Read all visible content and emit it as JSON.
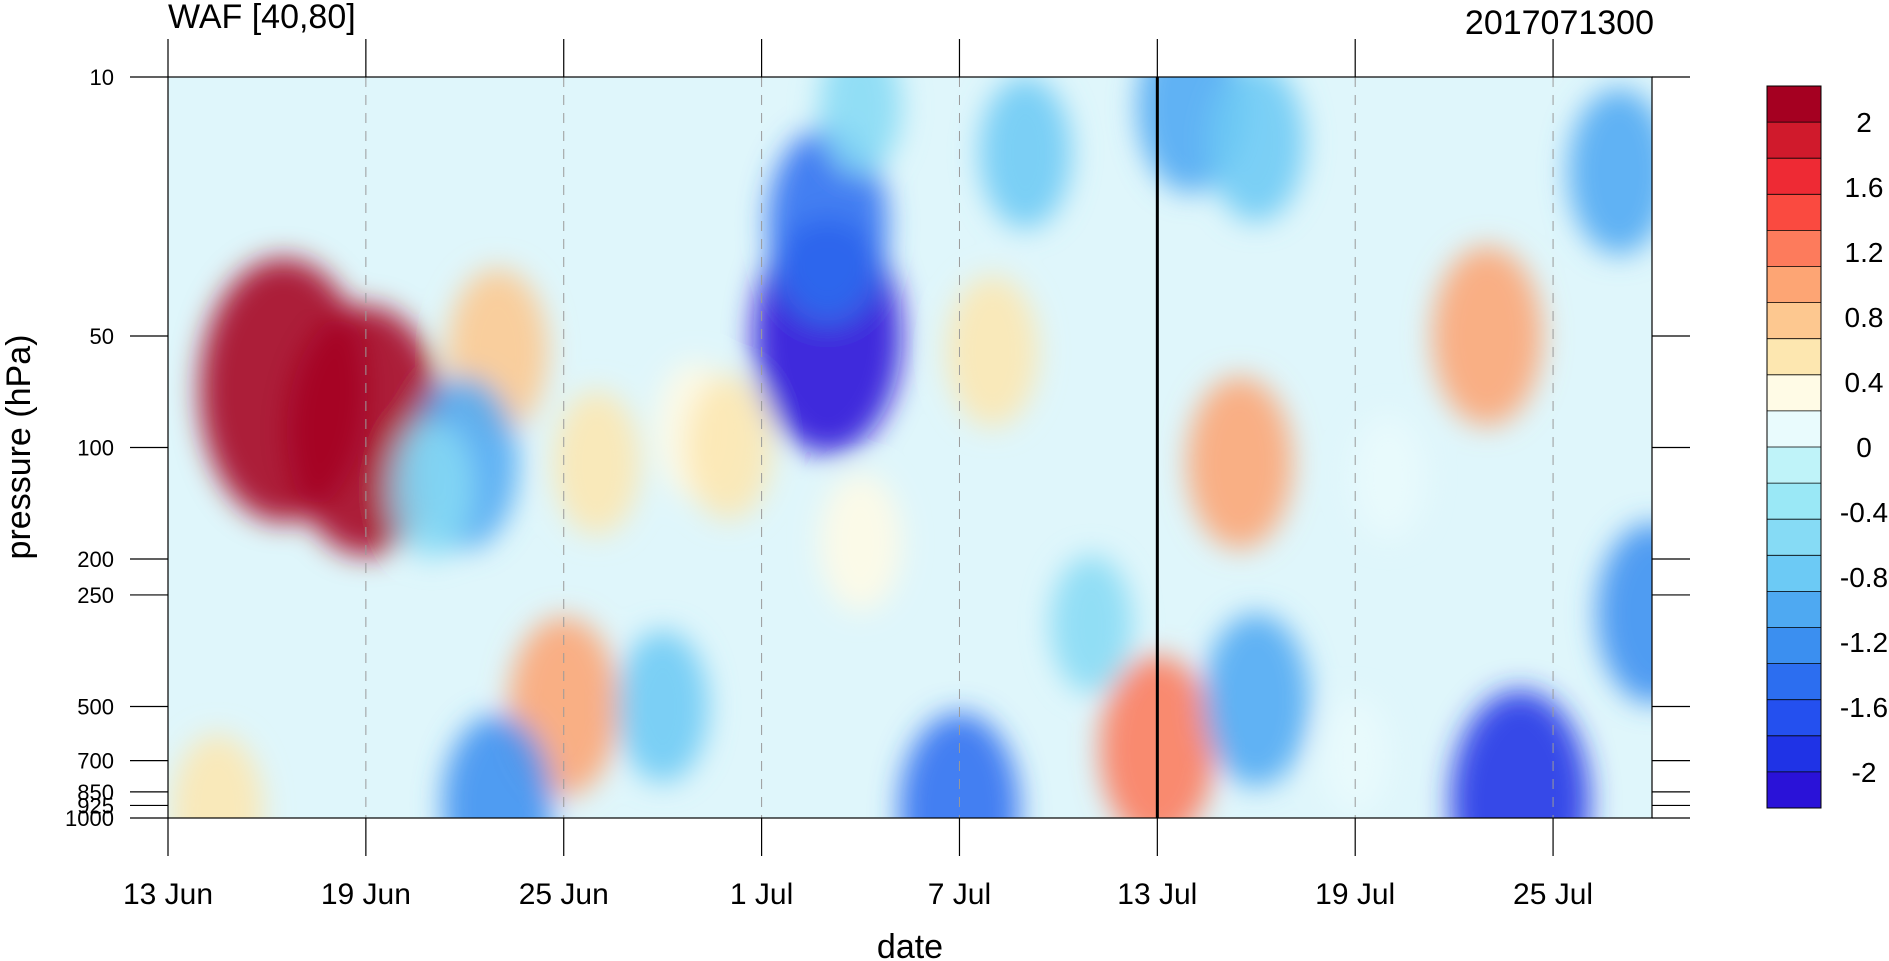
{
  "chart_data": {
    "type": "heatmap",
    "title": "WAF [40,80]",
    "subtitle": "2017071300",
    "xlabel": "date",
    "ylabel": "pressure (hPa)",
    "x_ticks": [
      "13 Jun",
      "19 Jun",
      "25 Jun",
      "1 Jul",
      "7 Jul",
      "13 Jul",
      "19 Jul",
      "25 Jul"
    ],
    "y_ticks": [
      "10",
      "50",
      "100",
      "200",
      "250",
      "500",
      "700",
      "850",
      "925",
      "1000"
    ],
    "y_tick_values": [
      10,
      50,
      100,
      200,
      250,
      500,
      700,
      850,
      925,
      1000
    ],
    "y_scale": "log",
    "ylim": [
      1000,
      10
    ],
    "x_range": [
      "13 Jun",
      "28 Jul"
    ],
    "marker_date": "13 Jul",
    "colorbar": {
      "tick_labels": [
        "2",
        "1.6",
        "1.2",
        "0.8",
        "0.4",
        "0",
        "-0.4",
        "-0.8",
        "-1.2",
        "-1.6",
        "-2"
      ],
      "tick_values": [
        2,
        1.6,
        1.2,
        0.8,
        0.4,
        0,
        -0.4,
        -0.8,
        -1.2,
        -1.6,
        -2
      ],
      "colors": [
        "#a50021",
        "#d01a2c",
        "#ee2a34",
        "#fa4a40",
        "#fd7b5c",
        "#fda574",
        "#fdc890",
        "#fde7b0",
        "#fffbe6",
        "#e9fbfd",
        "#bff3f9",
        "#9ae8f6",
        "#86dbf5",
        "#6ccaf5",
        "#4ea9f2",
        "#3b8ff0",
        "#2c6ef0",
        "#2450ef",
        "#1f33e6",
        "#2a12d8"
      ]
    },
    "features": [
      {
        "date": "16.5 Jun",
        "level": 70,
        "value": 2.2
      },
      {
        "date": "19 Jun",
        "level": 90,
        "value": 2.0
      },
      {
        "date": "26 Jun",
        "level": 110,
        "value": 0.5
      },
      {
        "date": "25 Jun",
        "level": 500,
        "value": 1.0
      },
      {
        "date": "23 Jun",
        "level": 55,
        "value": 0.8
      },
      {
        "date": "22 Jun",
        "level": 110,
        "value": -0.9
      },
      {
        "date": "21 Jun",
        "level": 130,
        "value": -0.4
      },
      {
        "date": "3 Jul",
        "level": 50,
        "value": -1.8
      },
      {
        "date": "3 Jul",
        "level": 25,
        "value": -1.2
      },
      {
        "date": "4 Jul",
        "level": 12,
        "value": -0.4
      },
      {
        "date": "29 Jun",
        "level": 90,
        "value": 0.4
      },
      {
        "date": "30 Jun",
        "level": 100,
        "value": 0.5
      },
      {
        "date": "4 Jul",
        "level": 180,
        "value": 0.4
      },
      {
        "date": "8 Jul",
        "level": 55,
        "value": 0.6
      },
      {
        "date": "9 Jul",
        "level": 16,
        "value": -0.6
      },
      {
        "date": "14 Jul",
        "level": 12,
        "value": -0.9
      },
      {
        "date": "16 Jul",
        "level": 15,
        "value": -0.7
      },
      {
        "date": "15.5 Jul",
        "level": 110,
        "value": 0.9
      },
      {
        "date": "13 Jul",
        "level": 650,
        "value": 1.1
      },
      {
        "date": "16 Jul",
        "level": 480,
        "value": -0.9
      },
      {
        "date": "23 Jul",
        "level": 50,
        "value": 1.0
      },
      {
        "date": "20 Jul",
        "level": 120,
        "value": 0.2
      },
      {
        "date": "24 Jul",
        "level": 900,
        "value": -1.6
      },
      {
        "date": "28 Jul",
        "level": 280,
        "value": -1.0
      },
      {
        "date": "27 Jul",
        "level": 18,
        "value": -0.8
      },
      {
        "date": "23 Jun",
        "level": 920,
        "value": -1.0
      },
      {
        "date": "14.5 Jun",
        "level": 950,
        "value": 0.6
      },
      {
        "date": "7 Jul",
        "level": 950,
        "value": -1.2
      },
      {
        "date": "19 Jul",
        "level": 680,
        "value": 0.1
      },
      {
        "date": "28 Jun",
        "level": 500,
        "value": -0.6
      },
      {
        "date": "11 Jul",
        "level": 300,
        "value": -0.4
      }
    ]
  }
}
